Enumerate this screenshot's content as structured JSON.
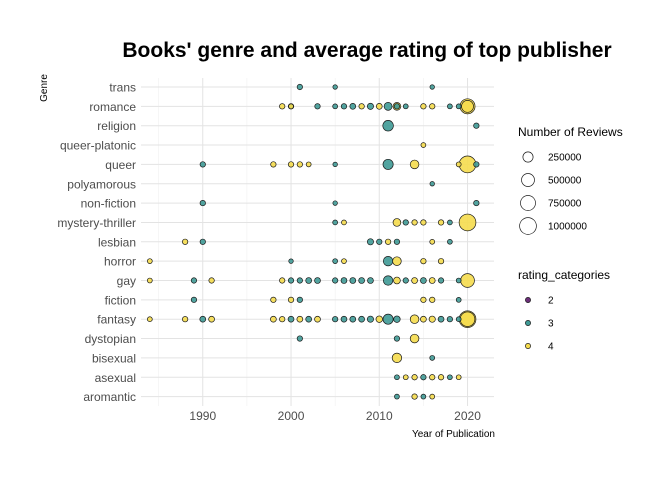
{
  "chart_data": {
    "type": "scatter",
    "title": "Books' genre and average rating of top publisher",
    "xlabel": "Year of Publication",
    "ylabel": "Genre",
    "xlim": [
      1983,
      2023
    ],
    "x_ticks": [
      1990,
      2000,
      2010,
      2020
    ],
    "grid": true,
    "categories": [
      "trans",
      "romance",
      "religion",
      "queer-platonic",
      "queer",
      "polyamorous",
      "non-fiction",
      "mystery-thriller",
      "lesbian",
      "horror",
      "gay",
      "fiction",
      "fantasy",
      "dystopian",
      "bisexual",
      "asexual",
      "aromantic"
    ],
    "size_legend": {
      "title": "Number of Reviews",
      "values": [
        250000,
        500000,
        750000,
        1000000
      ],
      "labels": [
        "250000",
        "500000",
        "750000",
        "1000000"
      ]
    },
    "color_legend": {
      "title": "rating_categories",
      "labels": [
        "2",
        "3",
        "4"
      ],
      "colors": [
        "#6b2f78",
        "#3f9a96",
        "#f5dc4e"
      ]
    },
    "points": [
      {
        "genre": "trans",
        "x": 2001,
        "rating": 3,
        "reviews": 20000
      },
      {
        "genre": "trans",
        "x": 2005,
        "rating": 3,
        "reviews": 5000
      },
      {
        "genre": "trans",
        "x": 2016,
        "rating": 3,
        "reviews": 5000
      },
      {
        "genre": "romance",
        "x": 1999,
        "rating": 4,
        "reviews": 20000
      },
      {
        "genre": "romance",
        "x": 2000,
        "rating": 3,
        "reviews": 20000
      },
      {
        "genre": "romance",
        "x": 2000,
        "rating": 4,
        "reviews": 10000
      },
      {
        "genre": "romance",
        "x": 2003,
        "rating": 3,
        "reviews": 20000
      },
      {
        "genre": "romance",
        "x": 2005,
        "rating": 3,
        "reviews": 10000
      },
      {
        "genre": "romance",
        "x": 2006,
        "rating": 3,
        "reviews": 20000
      },
      {
        "genre": "romance",
        "x": 2007,
        "rating": 3,
        "reviews": 30000
      },
      {
        "genre": "romance",
        "x": 2008,
        "rating": 4,
        "reviews": 20000
      },
      {
        "genre": "romance",
        "x": 2009,
        "rating": 3,
        "reviews": 40000
      },
      {
        "genre": "romance",
        "x": 2010,
        "rating": 4,
        "reviews": 30000
      },
      {
        "genre": "romance",
        "x": 2011,
        "rating": 3,
        "reviews": 110000
      },
      {
        "genre": "romance",
        "x": 2012,
        "rating": 4,
        "reviews": 100000
      },
      {
        "genre": "romance",
        "x": 2012,
        "rating": 3,
        "reviews": 20000
      },
      {
        "genre": "romance",
        "x": 2013,
        "rating": 3,
        "reviews": 10000
      },
      {
        "genre": "romance",
        "x": 2015,
        "rating": 4,
        "reviews": 20000
      },
      {
        "genre": "romance",
        "x": 2016,
        "rating": 4,
        "reviews": 20000
      },
      {
        "genre": "romance",
        "x": 2018,
        "rating": 3,
        "reviews": 10000
      },
      {
        "genre": "romance",
        "x": 2019,
        "rating": 3,
        "reviews": 10000
      },
      {
        "genre": "romance",
        "x": 2020,
        "rating": 4,
        "reviews": 750000
      },
      {
        "genre": "romance",
        "x": 2020,
        "rating": 4,
        "reviews": 400000
      },
      {
        "genre": "religion",
        "x": 2011,
        "rating": 3,
        "reviews": 280000
      },
      {
        "genre": "religion",
        "x": 2021,
        "rating": 3,
        "reviews": 20000
      },
      {
        "genre": "queer-platonic",
        "x": 2015,
        "rating": 4,
        "reviews": 10000
      },
      {
        "genre": "queer",
        "x": 1990,
        "rating": 3,
        "reviews": 20000
      },
      {
        "genre": "queer",
        "x": 1998,
        "rating": 4,
        "reviews": 20000
      },
      {
        "genre": "queer",
        "x": 2000,
        "rating": 4,
        "reviews": 20000
      },
      {
        "genre": "queer",
        "x": 2001,
        "rating": 4,
        "reviews": 20000
      },
      {
        "genre": "queer",
        "x": 2002,
        "rating": 4,
        "reviews": 10000
      },
      {
        "genre": "queer",
        "x": 2005,
        "rating": 3,
        "reviews": 5000
      },
      {
        "genre": "queer",
        "x": 2011,
        "rating": 3,
        "reviews": 250000
      },
      {
        "genre": "queer",
        "x": 2014,
        "rating": 4,
        "reviews": 150000
      },
      {
        "genre": "queer",
        "x": 2019,
        "rating": 4,
        "reviews": 10000
      },
      {
        "genre": "queer",
        "x": 2020,
        "rating": 4,
        "reviews": 1000000
      },
      {
        "genre": "queer",
        "x": 2021,
        "rating": 3,
        "reviews": 20000
      },
      {
        "genre": "polyamorous",
        "x": 2016,
        "rating": 3,
        "reviews": 5000
      },
      {
        "genre": "non-fiction",
        "x": 1990,
        "rating": 3,
        "reviews": 20000
      },
      {
        "genre": "non-fiction",
        "x": 2005,
        "rating": 3,
        "reviews": 5000
      },
      {
        "genre": "non-fiction",
        "x": 2021,
        "rating": 3,
        "reviews": 20000
      },
      {
        "genre": "mystery-thriller",
        "x": 2005,
        "rating": 3,
        "reviews": 10000
      },
      {
        "genre": "mystery-thriller",
        "x": 2006,
        "rating": 4,
        "reviews": 10000
      },
      {
        "genre": "mystery-thriller",
        "x": 2012,
        "rating": 4,
        "reviews": 100000
      },
      {
        "genre": "mystery-thriller",
        "x": 2013,
        "rating": 3,
        "reviews": 20000
      },
      {
        "genre": "mystery-thriller",
        "x": 2014,
        "rating": 4,
        "reviews": 20000
      },
      {
        "genre": "mystery-thriller",
        "x": 2015,
        "rating": 4,
        "reviews": 20000
      },
      {
        "genre": "mystery-thriller",
        "x": 2017,
        "rating": 4,
        "reviews": 20000
      },
      {
        "genre": "mystery-thriller",
        "x": 2018,
        "rating": 3,
        "reviews": 10000
      },
      {
        "genre": "mystery-thriller",
        "x": 2020,
        "rating": 4,
        "reviews": 1000000
      },
      {
        "genre": "lesbian",
        "x": 1988,
        "rating": 4,
        "reviews": 20000
      },
      {
        "genre": "lesbian",
        "x": 1990,
        "rating": 3,
        "reviews": 20000
      },
      {
        "genre": "lesbian",
        "x": 2009,
        "rating": 3,
        "reviews": 40000
      },
      {
        "genre": "lesbian",
        "x": 2010,
        "rating": 3,
        "reviews": 20000
      },
      {
        "genre": "lesbian",
        "x": 2011,
        "rating": 4,
        "reviews": 20000
      },
      {
        "genre": "lesbian",
        "x": 2012,
        "rating": 3,
        "reviews": 20000
      },
      {
        "genre": "lesbian",
        "x": 2016,
        "rating": 4,
        "reviews": 10000
      },
      {
        "genre": "lesbian",
        "x": 2018,
        "rating": 3,
        "reviews": 10000
      },
      {
        "genre": "horror",
        "x": 1984,
        "rating": 4,
        "reviews": 10000
      },
      {
        "genre": "horror",
        "x": 2000,
        "rating": 3,
        "reviews": 5000
      },
      {
        "genre": "horror",
        "x": 2005,
        "rating": 3,
        "reviews": 10000
      },
      {
        "genre": "horror",
        "x": 2006,
        "rating": 4,
        "reviews": 10000
      },
      {
        "genre": "horror",
        "x": 2011,
        "rating": 3,
        "reviews": 200000
      },
      {
        "genre": "horror",
        "x": 2012,
        "rating": 4,
        "reviews": 150000
      },
      {
        "genre": "horror",
        "x": 2015,
        "rating": 4,
        "reviews": 20000
      },
      {
        "genre": "horror",
        "x": 2017,
        "rating": 4,
        "reviews": 20000
      },
      {
        "genre": "gay",
        "x": 1984,
        "rating": 4,
        "reviews": 10000
      },
      {
        "genre": "gay",
        "x": 1989,
        "rating": 3,
        "reviews": 20000
      },
      {
        "genre": "gay",
        "x": 1991,
        "rating": 4,
        "reviews": 20000
      },
      {
        "genre": "gay",
        "x": 1999,
        "rating": 4,
        "reviews": 20000
      },
      {
        "genre": "gay",
        "x": 2000,
        "rating": 3,
        "reviews": 20000
      },
      {
        "genre": "gay",
        "x": 2001,
        "rating": 3,
        "reviews": 20000
      },
      {
        "genre": "gay",
        "x": 2002,
        "rating": 3,
        "reviews": 30000
      },
      {
        "genre": "gay",
        "x": 2003,
        "rating": 3,
        "reviews": 30000
      },
      {
        "genre": "gay",
        "x": 2005,
        "rating": 3,
        "reviews": 20000
      },
      {
        "genre": "gay",
        "x": 2006,
        "rating": 3,
        "reviews": 30000
      },
      {
        "genre": "gay",
        "x": 2007,
        "rating": 3,
        "reviews": 30000
      },
      {
        "genre": "gay",
        "x": 2008,
        "rating": 3,
        "reviews": 30000
      },
      {
        "genre": "gay",
        "x": 2009,
        "rating": 3,
        "reviews": 30000
      },
      {
        "genre": "gay",
        "x": 2011,
        "rating": 3,
        "reviews": 200000
      },
      {
        "genre": "gay",
        "x": 2012,
        "rating": 4,
        "reviews": 60000
      },
      {
        "genre": "gay",
        "x": 2013,
        "rating": 3,
        "reviews": 20000
      },
      {
        "genre": "gay",
        "x": 2014,
        "rating": 4,
        "reviews": 30000
      },
      {
        "genre": "gay",
        "x": 2015,
        "rating": 3,
        "reviews": 30000
      },
      {
        "genre": "gay",
        "x": 2016,
        "rating": 4,
        "reviews": 30000
      },
      {
        "genre": "gay",
        "x": 2017,
        "rating": 3,
        "reviews": 20000
      },
      {
        "genre": "gay",
        "x": 2019,
        "rating": 3,
        "reviews": 10000
      },
      {
        "genre": "gay",
        "x": 2020,
        "rating": 4,
        "reviews": 600000
      },
      {
        "genre": "fiction",
        "x": 1989,
        "rating": 3,
        "reviews": 20000
      },
      {
        "genre": "fiction",
        "x": 1998,
        "rating": 4,
        "reviews": 20000
      },
      {
        "genre": "fiction",
        "x": 2000,
        "rating": 4,
        "reviews": 20000
      },
      {
        "genre": "fiction",
        "x": 2001,
        "rating": 3,
        "reviews": 20000
      },
      {
        "genre": "fiction",
        "x": 2015,
        "rating": 4,
        "reviews": 20000
      },
      {
        "genre": "fiction",
        "x": 2016,
        "rating": 4,
        "reviews": 20000
      },
      {
        "genre": "fiction",
        "x": 2019,
        "rating": 3,
        "reviews": 10000
      },
      {
        "genre": "fantasy",
        "x": 1984,
        "rating": 4,
        "reviews": 10000
      },
      {
        "genre": "fantasy",
        "x": 1988,
        "rating": 4,
        "reviews": 20000
      },
      {
        "genre": "fantasy",
        "x": 1990,
        "rating": 3,
        "reviews": 30000
      },
      {
        "genre": "fantasy",
        "x": 1991,
        "rating": 4,
        "reviews": 30000
      },
      {
        "genre": "fantasy",
        "x": 1998,
        "rating": 4,
        "reviews": 30000
      },
      {
        "genre": "fantasy",
        "x": 1999,
        "rating": 4,
        "reviews": 20000
      },
      {
        "genre": "fantasy",
        "x": 2000,
        "rating": 3,
        "reviews": 30000
      },
      {
        "genre": "fantasy",
        "x": 2001,
        "rating": 4,
        "reviews": 30000
      },
      {
        "genre": "fantasy",
        "x": 2002,
        "rating": 3,
        "reviews": 30000
      },
      {
        "genre": "fantasy",
        "x": 2003,
        "rating": 4,
        "reviews": 30000
      },
      {
        "genre": "fantasy",
        "x": 2005,
        "rating": 3,
        "reviews": 20000
      },
      {
        "genre": "fantasy",
        "x": 2006,
        "rating": 3,
        "reviews": 30000
      },
      {
        "genre": "fantasy",
        "x": 2007,
        "rating": 3,
        "reviews": 30000
      },
      {
        "genre": "fantasy",
        "x": 2008,
        "rating": 3,
        "reviews": 30000
      },
      {
        "genre": "fantasy",
        "x": 2009,
        "rating": 3,
        "reviews": 40000
      },
      {
        "genre": "fantasy",
        "x": 2010,
        "rating": 4,
        "reviews": 50000
      },
      {
        "genre": "fantasy",
        "x": 2011,
        "rating": 3,
        "reviews": 250000
      },
      {
        "genre": "fantasy",
        "x": 2012,
        "rating": 3,
        "reviews": 50000
      },
      {
        "genre": "fantasy",
        "x": 2014,
        "rating": 4,
        "reviews": 150000
      },
      {
        "genre": "fantasy",
        "x": 2015,
        "rating": 4,
        "reviews": 30000
      },
      {
        "genre": "fantasy",
        "x": 2016,
        "rating": 4,
        "reviews": 40000
      },
      {
        "genre": "fantasy",
        "x": 2017,
        "rating": 3,
        "reviews": 30000
      },
      {
        "genre": "fantasy",
        "x": 2018,
        "rating": 3,
        "reviews": 20000
      },
      {
        "genre": "fantasy",
        "x": 2019,
        "rating": 3,
        "reviews": 10000
      },
      {
        "genre": "fantasy",
        "x": 2020,
        "rating": 4,
        "reviews": 1000000
      },
      {
        "genre": "fantasy",
        "x": 2020,
        "rating": 4,
        "reviews": 700000
      },
      {
        "genre": "dystopian",
        "x": 2001,
        "rating": 3,
        "reviews": 20000
      },
      {
        "genre": "dystopian",
        "x": 2012,
        "rating": 3,
        "reviews": 20000
      },
      {
        "genre": "dystopian",
        "x": 2014,
        "rating": 4,
        "reviews": 150000
      },
      {
        "genre": "bisexual",
        "x": 2012,
        "rating": 4,
        "reviews": 200000
      },
      {
        "genre": "bisexual",
        "x": 2016,
        "rating": 3,
        "reviews": 10000
      },
      {
        "genre": "asexual",
        "x": 2012,
        "rating": 3,
        "reviews": 10000
      },
      {
        "genre": "asexual",
        "x": 2013,
        "rating": 4,
        "reviews": 10000
      },
      {
        "genre": "asexual",
        "x": 2014,
        "rating": 4,
        "reviews": 20000
      },
      {
        "genre": "asexual",
        "x": 2015,
        "rating": 3,
        "reviews": 20000
      },
      {
        "genre": "asexual",
        "x": 2016,
        "rating": 4,
        "reviews": 20000
      },
      {
        "genre": "asexual",
        "x": 2017,
        "rating": 4,
        "reviews": 20000
      },
      {
        "genre": "asexual",
        "x": 2018,
        "rating": 3,
        "reviews": 10000
      },
      {
        "genre": "asexual",
        "x": 2019,
        "rating": 4,
        "reviews": 10000
      },
      {
        "genre": "aromantic",
        "x": 2012,
        "rating": 3,
        "reviews": 10000
      },
      {
        "genre": "aromantic",
        "x": 2014,
        "rating": 4,
        "reviews": 20000
      },
      {
        "genre": "aromantic",
        "x": 2015,
        "rating": 3,
        "reviews": 10000
      },
      {
        "genre": "aromantic",
        "x": 2016,
        "rating": 4,
        "reviews": 10000
      }
    ]
  }
}
